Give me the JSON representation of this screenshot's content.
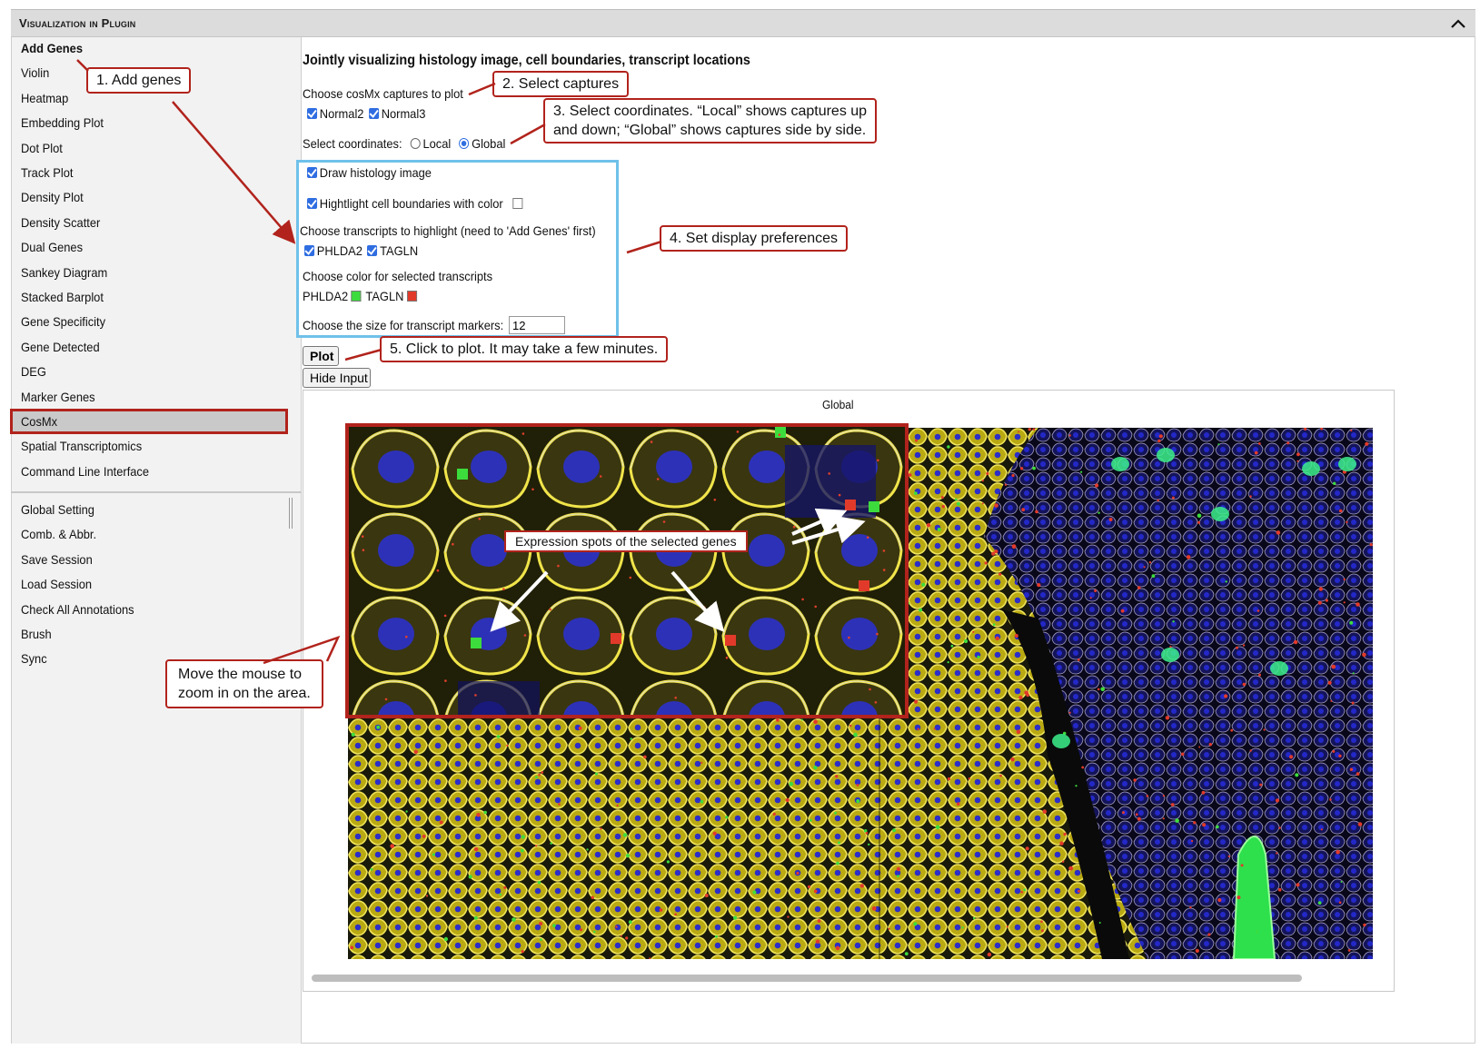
{
  "panel": {
    "title": "Visualization in Plugin"
  },
  "sidebar": {
    "items": [
      "Add Genes",
      "Violin",
      "Heatmap",
      "Embedding Plot",
      "Dot Plot",
      "Track Plot",
      "Density Plot",
      "Density Scatter",
      "Dual Genes",
      "Sankey Diagram",
      "Stacked Barplot",
      "Gene Specificity",
      "Gene Detected",
      "DEG",
      "Marker Genes",
      "CosMx",
      "Spatial Transcriptomics",
      "Command Line Interface"
    ],
    "bottom_items": [
      "Global Setting",
      "Comb. & Abbr.",
      "Save Session",
      "Load Session",
      "Check All Annotations",
      "Brush",
      "Sync"
    ]
  },
  "main": {
    "title": "Jointly visualizing histology image, cell boundaries, transcript locations",
    "captures_label": "Choose cosMx captures to plot",
    "captures": [
      "Normal2",
      "Normal3"
    ],
    "coords_label": "Select coordinates:",
    "coord_options": [
      "Local",
      "Global"
    ],
    "coord_selected": "Global",
    "draw_histology": "Draw histology image",
    "highlight_boundaries": "Hightlight cell boundaries with color",
    "transcripts_label": "Choose transcripts to highlight (need to 'Add Genes' first)",
    "transcripts": [
      "PHLDA2",
      "TAGLN"
    ],
    "color_label": "Choose color for selected transcripts",
    "colors": [
      {
        "gene": "PHLDA2",
        "color": "#3ddc3d"
      },
      {
        "gene": "TAGLN",
        "color": "#e23a2a"
      }
    ],
    "size_label": "Choose the size for transcript markers:",
    "size_value": "12",
    "plot_button": "Plot",
    "hide_button": "Hide Input",
    "plot_title": "Global"
  },
  "annotations": {
    "step1": "1. Add genes",
    "step2": "2. Select captures",
    "step3_line1": "3. Select  coordinates. “Local” shows captures up",
    "step3_line2": "and down; “Global” shows captures side by side.",
    "step4": "4. Set display preferences",
    "step5": "5. Click to plot. It may take a few minutes.",
    "zoom_line1": "Move the mouse to",
    "zoom_line2": "zoom in on the area.",
    "expression": "Expression spots of the selected genes"
  },
  "colors": {
    "accent_red": "#b1231c",
    "prefs_border": "#6fc1ea",
    "checkbox_blue": "#2f6de1"
  },
  "icons": {
    "collapse": "chevron-up-icon"
  }
}
